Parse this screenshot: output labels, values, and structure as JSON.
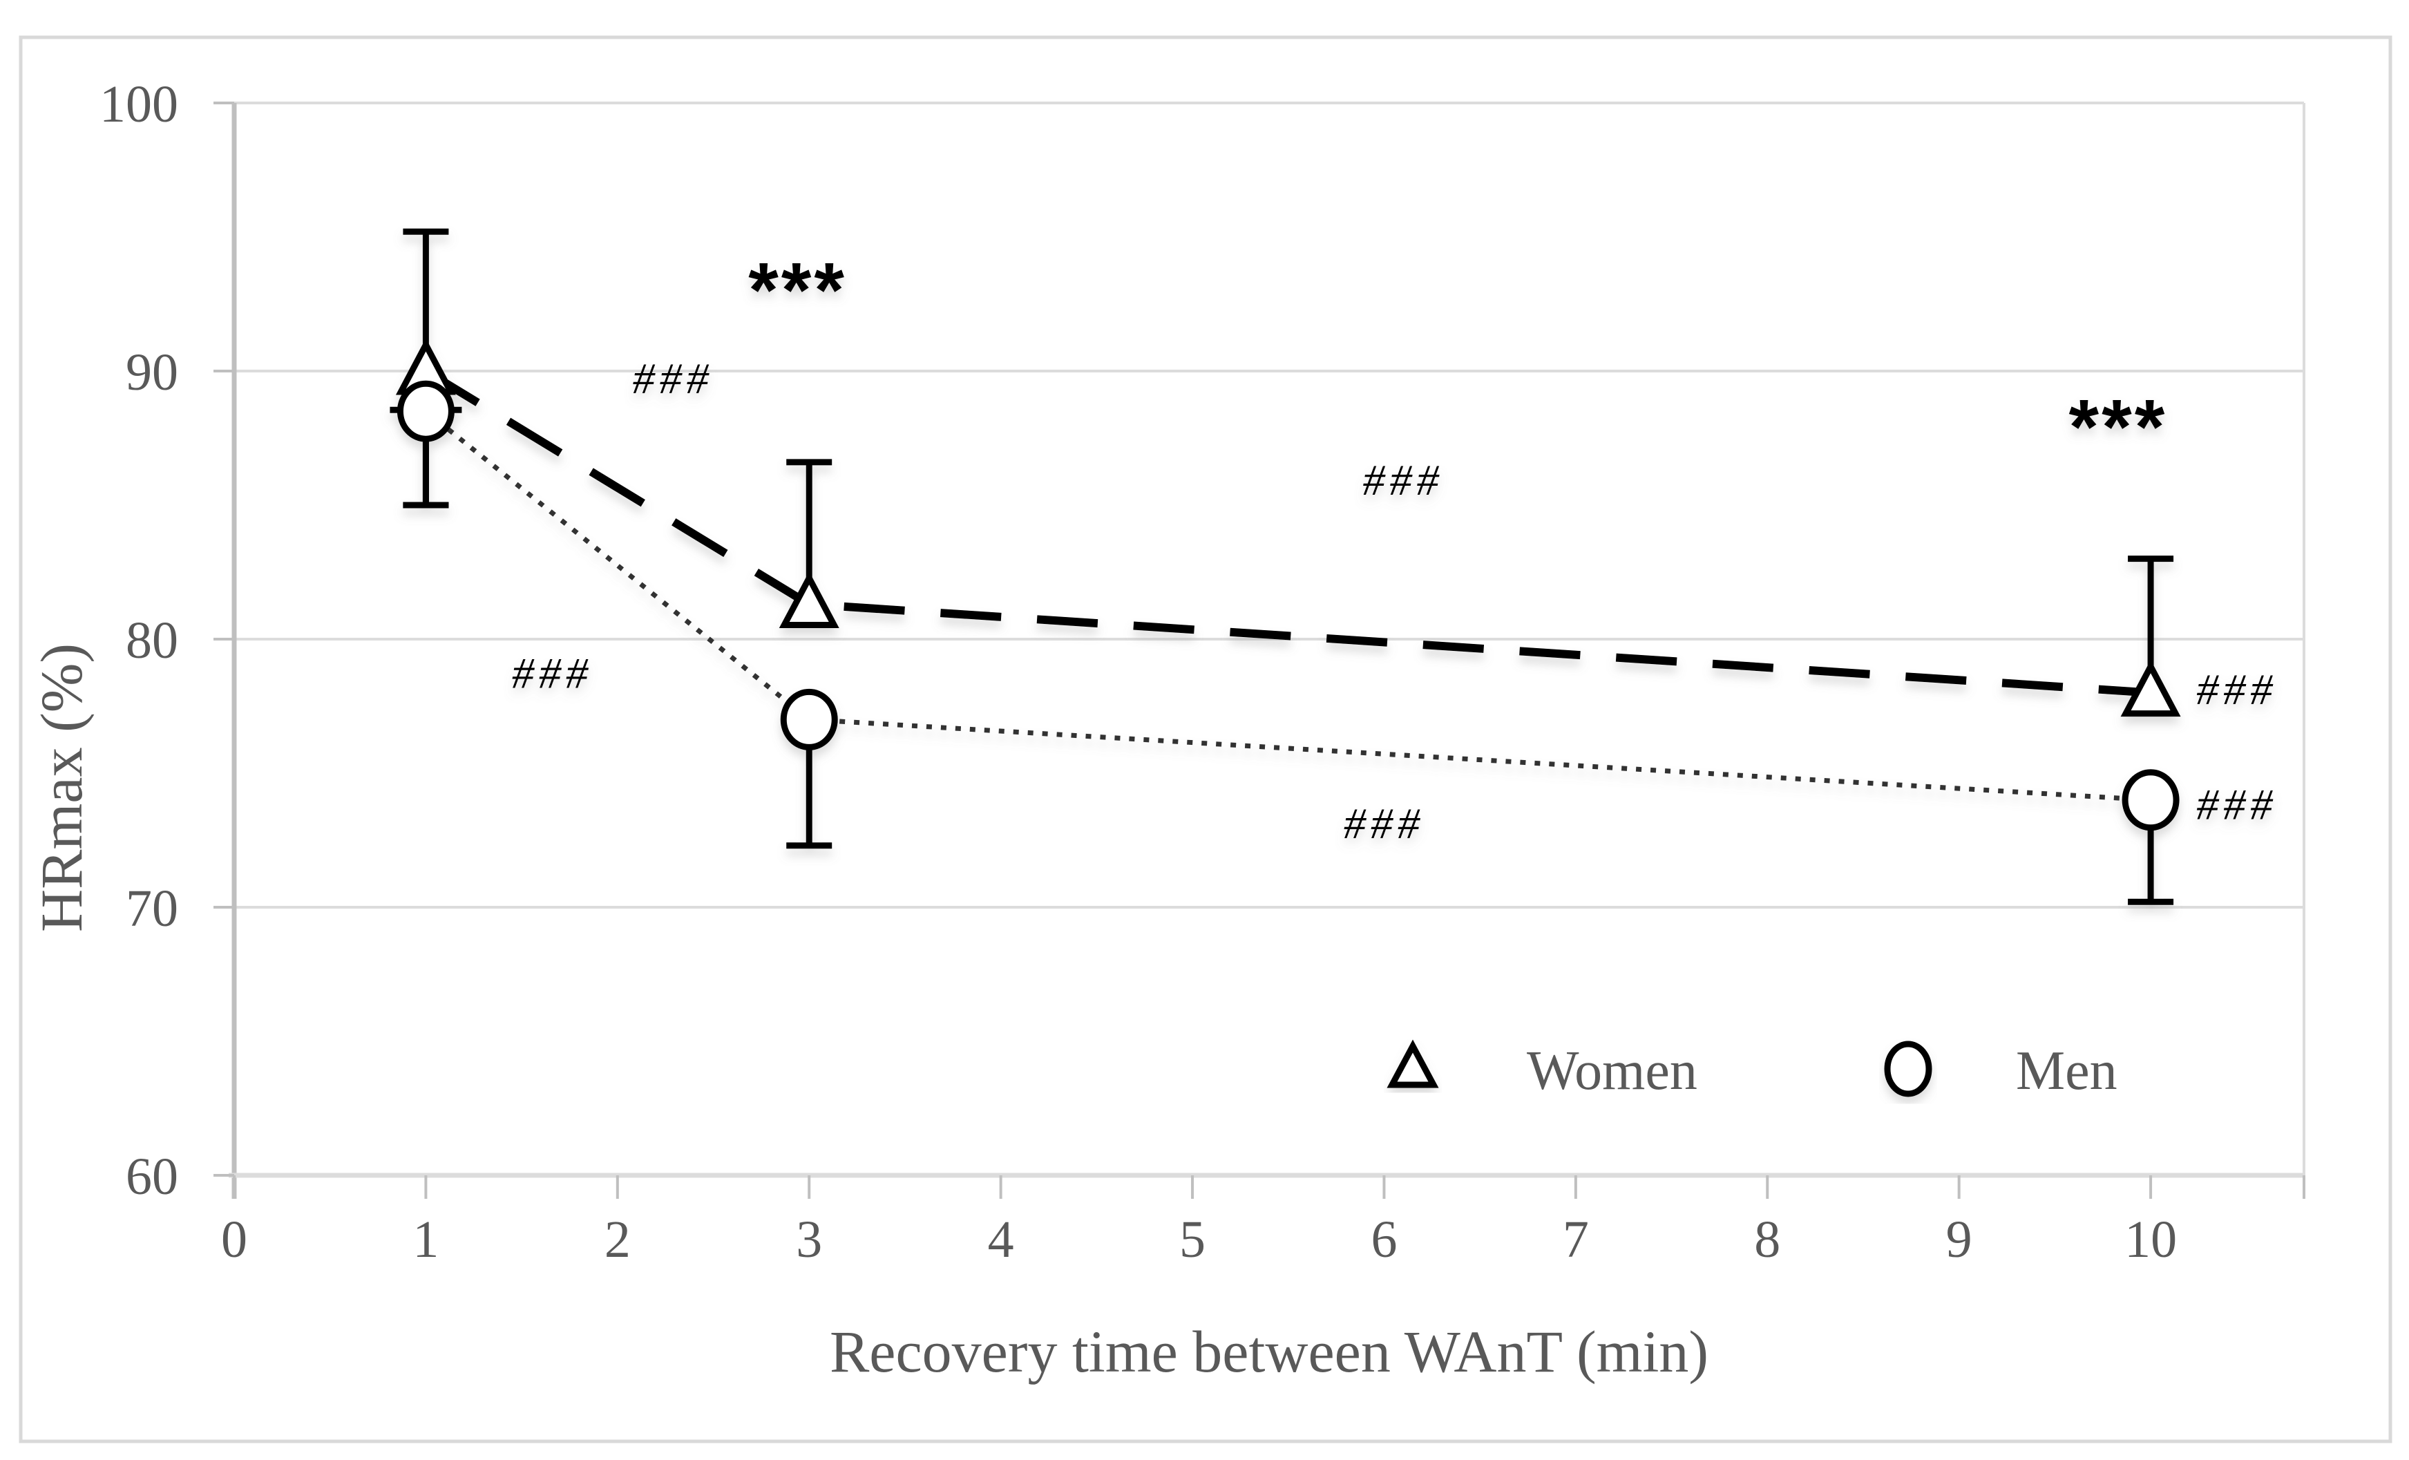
{
  "figure": {
    "background": "#ffffff",
    "border_color": "#d9d9d9",
    "grid_color": "#dcdcdc",
    "axis_line_color": "#bfbfbf",
    "text_color": "#595959",
    "series_color": "#000000",
    "annotation_color": "#000000"
  },
  "chart_data": {
    "type": "line",
    "title": "",
    "xlabel": "Recovery time between WAnT (min)",
    "ylabel": "HRmax (%)",
    "xlim": [
      0,
      10.8
    ],
    "ylim": [
      60,
      100
    ],
    "x_ticks": [
      0,
      1,
      2,
      3,
      4,
      5,
      6,
      7,
      8,
      9,
      10
    ],
    "y_ticks": [
      60,
      70,
      80,
      90,
      100
    ],
    "grid": "horizontal",
    "legend_position": "bottom-inside",
    "series": [
      {
        "name": "Women",
        "marker": "triangle",
        "line_style": "dashed",
        "color": "#000000",
        "x": [
          1,
          3,
          10
        ],
        "y": [
          90,
          81.3,
          78
        ],
        "error_up": [
          5.2,
          5.3,
          5.0
        ],
        "error_down": [
          5.0,
          0,
          0
        ]
      },
      {
        "name": "Men",
        "marker": "circle",
        "line_style": "dotted",
        "color": "#333333",
        "x": [
          1,
          3,
          10
        ],
        "y": [
          88.5,
          77,
          74
        ],
        "error_up": [
          0.05,
          0,
          0
        ],
        "error_down": [
          3.5,
          4.7,
          3.8
        ]
      }
    ],
    "annotations": [
      {
        "text": "***",
        "x": 2.94,
        "y": 93.1,
        "style": "stars"
      },
      {
        "text": "###",
        "x": 2.29,
        "y": 89.8,
        "style": "hashes"
      },
      {
        "text": "###",
        "x": 1.66,
        "y": 78.8,
        "style": "hashes"
      },
      {
        "text": "###",
        "x": 6.1,
        "y": 86.0,
        "style": "hashes"
      },
      {
        "text": "###",
        "x": 6.0,
        "y": 73.2,
        "style": "hashes"
      },
      {
        "text": "***",
        "x": 9.83,
        "y": 88.0,
        "style": "stars"
      },
      {
        "text": "###",
        "x": 10.45,
        "y": 78.2,
        "style": "hashes"
      },
      {
        "text": "###",
        "x": 10.45,
        "y": 73.9,
        "style": "hashes"
      }
    ]
  }
}
